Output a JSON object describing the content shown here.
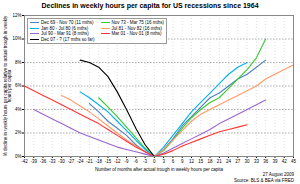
{
  "chart_data": {
    "type": "line",
    "title": "Declines in weekly hours per capita for US recessions since 1964",
    "x_label": "Number of months after actual trough in weekly hours per capita",
    "y_label": "% decline in weekly hours per capita relative to actual trough in weekly hours per capita",
    "footer": [
      "27 August 2009",
      "Source: BLS & BEA via FRED"
    ],
    "x": [
      -42,
      -39,
      -36,
      -33,
      -30,
      -27,
      -24,
      -21,
      -18,
      -15,
      -12,
      -9,
      -6,
      -3,
      0,
      3,
      6,
      9,
      12,
      15,
      18,
      21,
      24,
      27,
      30,
      33,
      36,
      39,
      42,
      45
    ],
    "series": [
      {
        "name": "Dec 69 - Nov 70 (11 mths)",
        "color": "#4f81bd",
        "values": [
          null,
          null,
          null,
          null,
          null,
          null,
          null,
          4.5,
          3.8,
          3.0,
          2.4,
          1.8,
          1.0,
          0.4,
          0,
          0.6,
          1.5,
          2.6,
          3.4,
          4.2,
          5.0,
          5.4,
          6.0,
          6.6,
          7.0,
          7.6,
          8.2,
          null,
          null,
          null
        ]
      },
      {
        "name": "Nov 73 - Mar 75 (16 mths)",
        "color": "#33cc33",
        "values": [
          null,
          null,
          null,
          null,
          null,
          null,
          null,
          null,
          5.0,
          4.2,
          3.4,
          2.5,
          1.6,
          0.7,
          0,
          0.5,
          1.4,
          2.4,
          3.3,
          4.0,
          4.6,
          5.0,
          5.8,
          6.6,
          7.4,
          8.4,
          10.0,
          null,
          null,
          null
        ]
      },
      {
        "name": "Jan 80 - Jul 80 (6 mths)",
        "color": "#00b0f0",
        "values": [
          null,
          null,
          null,
          null,
          null,
          null,
          5.5,
          5.0,
          4.4,
          3.8,
          3.0,
          2.2,
          1.4,
          0.6,
          0,
          0.8,
          1.8,
          2.8,
          3.8,
          4.6,
          5.4,
          6.2,
          7.0,
          7.6,
          8.0,
          null,
          null,
          null,
          null,
          null
        ]
      },
      {
        "name": "Jul 81 - Nov 82 (16 mths)",
        "color": "#ff9966",
        "values": [
          null,
          null,
          null,
          null,
          5.2,
          4.8,
          4.3,
          3.8,
          3.2,
          2.6,
          2.0,
          1.4,
          0.9,
          0.4,
          0,
          0.6,
          1.4,
          2.2,
          3.0,
          3.6,
          4.0,
          4.4,
          4.8,
          5.2,
          5.6,
          6.0,
          6.6,
          7.0,
          7.4,
          7.8
        ]
      },
      {
        "name": "Jul 90 - Mar 91 (8 mths)",
        "color": "#9966cc",
        "values": [
          null,
          4.0,
          3.6,
          3.2,
          2.8,
          2.4,
          2.0,
          1.7,
          1.4,
          1.1,
          0.8,
          0.6,
          0.4,
          0.2,
          0,
          0.3,
          0.7,
          1.1,
          1.5,
          1.9,
          2.3,
          2.8,
          3.2,
          3.6,
          4.0,
          4.4,
          4.8,
          null,
          null,
          null
        ]
      },
      {
        "name": "Mar 01 - Nov 01 (8 mths)",
        "color": "#ff3333",
        "values": [
          6.0,
          5.6,
          5.2,
          4.8,
          4.4,
          4.0,
          3.6,
          3.2,
          2.8,
          2.3,
          1.8,
          1.3,
          0.8,
          0.4,
          0,
          0.2,
          0.5,
          0.9,
          1.2,
          1.5,
          1.8,
          2.1,
          2.3,
          2.5,
          2.7,
          null,
          null,
          null,
          null,
          null
        ]
      },
      {
        "name": "Dec 07 - ? (17 mths so far)",
        "color": "#000000",
        "values": [
          null,
          null,
          null,
          null,
          null,
          null,
          8.2,
          8.0,
          7.6,
          6.8,
          5.5,
          4.0,
          2.4,
          1.0,
          0,
          null,
          null,
          null,
          null,
          null,
          null,
          null,
          null,
          null,
          null,
          null,
          null,
          null,
          null,
          null
        ]
      }
    ],
    "xlim": [
      -42,
      45
    ],
    "xticks": [
      -42,
      -39,
      -36,
      -33,
      -30,
      -27,
      -24,
      -21,
      -18,
      -15,
      -12,
      -9,
      -6,
      -3,
      0,
      3,
      6,
      9,
      12,
      15,
      18,
      21,
      24,
      27,
      30,
      33,
      36,
      39,
      42,
      45
    ],
    "ylim": [
      0,
      12
    ],
    "yticks": [
      {
        "value": 0,
        "label": "0%"
      },
      {
        "value": 2,
        "label": "2%"
      },
      {
        "value": 4,
        "label": "4%"
      },
      {
        "value": 6,
        "label": "6%"
      },
      {
        "value": 8,
        "label": "8%"
      },
      {
        "value": 10,
        "label": "10%"
      },
      {
        "value": 12,
        "label": "12%"
      }
    ],
    "grid": true,
    "legend": "top-left"
  }
}
